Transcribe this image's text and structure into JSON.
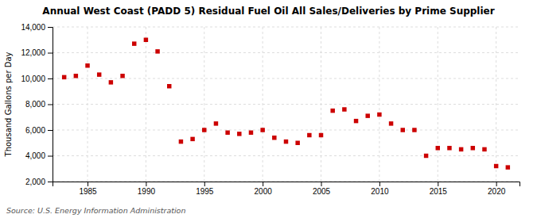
{
  "chart_data": {
    "type": "scatter",
    "title": "Annual West Coast (PADD 5) Residual Fuel Oil All Sales/Deliveries by Prime Supplier",
    "y_label": "Thousand Gallons per Day",
    "source": "Source: U.S. Energy Information Administration",
    "color": "#cc0000",
    "marker": "square",
    "grid": true,
    "x": [
      1983,
      1984,
      1985,
      1986,
      1987,
      1988,
      1989,
      1990,
      1991,
      1992,
      1993,
      1994,
      1995,
      1996,
      1997,
      1998,
      1999,
      2000,
      2001,
      2002,
      2003,
      2004,
      2005,
      2006,
      2007,
      2008,
      2009,
      2010,
      2011,
      2012,
      2013,
      2014,
      2015,
      2016,
      2017,
      2018,
      2019,
      2020,
      2021
    ],
    "values": [
      10100,
      10200,
      11000,
      10300,
      9700,
      10200,
      12700,
      13000,
      12100,
      9400,
      5100,
      5300,
      6000,
      6500,
      5800,
      5700,
      5800,
      6000,
      5400,
      5100,
      5000,
      5600,
      5600,
      7500,
      7600,
      6700,
      7100,
      7200,
      6500,
      6000,
      6000,
      4000,
      4600,
      4600,
      4500,
      4600,
      4500,
      3200,
      3100
    ],
    "xlim": [
      1982,
      2022
    ],
    "xticks": [
      1985,
      1990,
      1995,
      2000,
      2005,
      2010,
      2015,
      2020
    ],
    "ylim": [
      2000,
      14000
    ],
    "yticks": [
      {
        "value": 2000,
        "label": "2,000"
      },
      {
        "value": 4000,
        "label": "4,000"
      },
      {
        "value": 6000,
        "label": "6,000"
      },
      {
        "value": 8000,
        "label": "8,000"
      },
      {
        "value": 10000,
        "label": "10,000"
      },
      {
        "value": 12000,
        "label": "12,000"
      },
      {
        "value": 14000,
        "label": "14,000"
      }
    ]
  }
}
